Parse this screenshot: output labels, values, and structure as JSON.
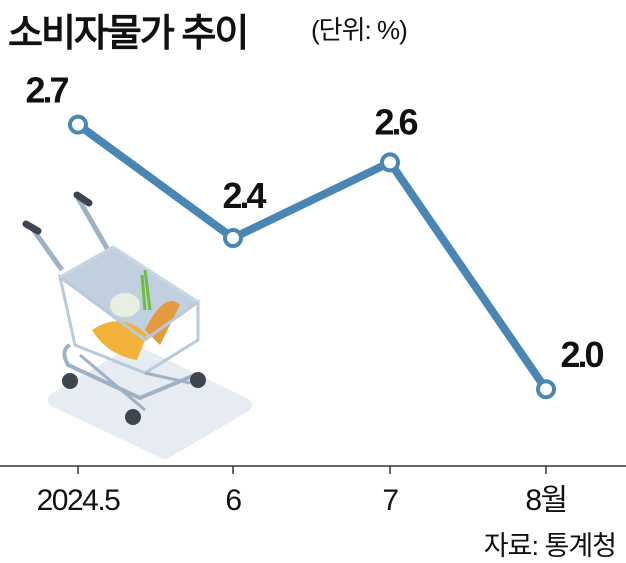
{
  "title": "소비자물가 추이",
  "unit": "(단위: %)",
  "source": "자료: 통계청",
  "colors": {
    "line": "#4a86b4",
    "axis": "#333333"
  },
  "chart_data": {
    "type": "line",
    "title": "소비자물가 추이",
    "categories": [
      "2024.5",
      "6",
      "7",
      "8월"
    ],
    "series": [
      {
        "values": [
          2.7,
          2.4,
          2.6,
          2.0
        ],
        "labels": [
          "2.7",
          "2.4",
          "2.6",
          "2.0"
        ]
      }
    ],
    "xlabel": "",
    "ylabel": "",
    "grid": false,
    "legend": "none"
  }
}
